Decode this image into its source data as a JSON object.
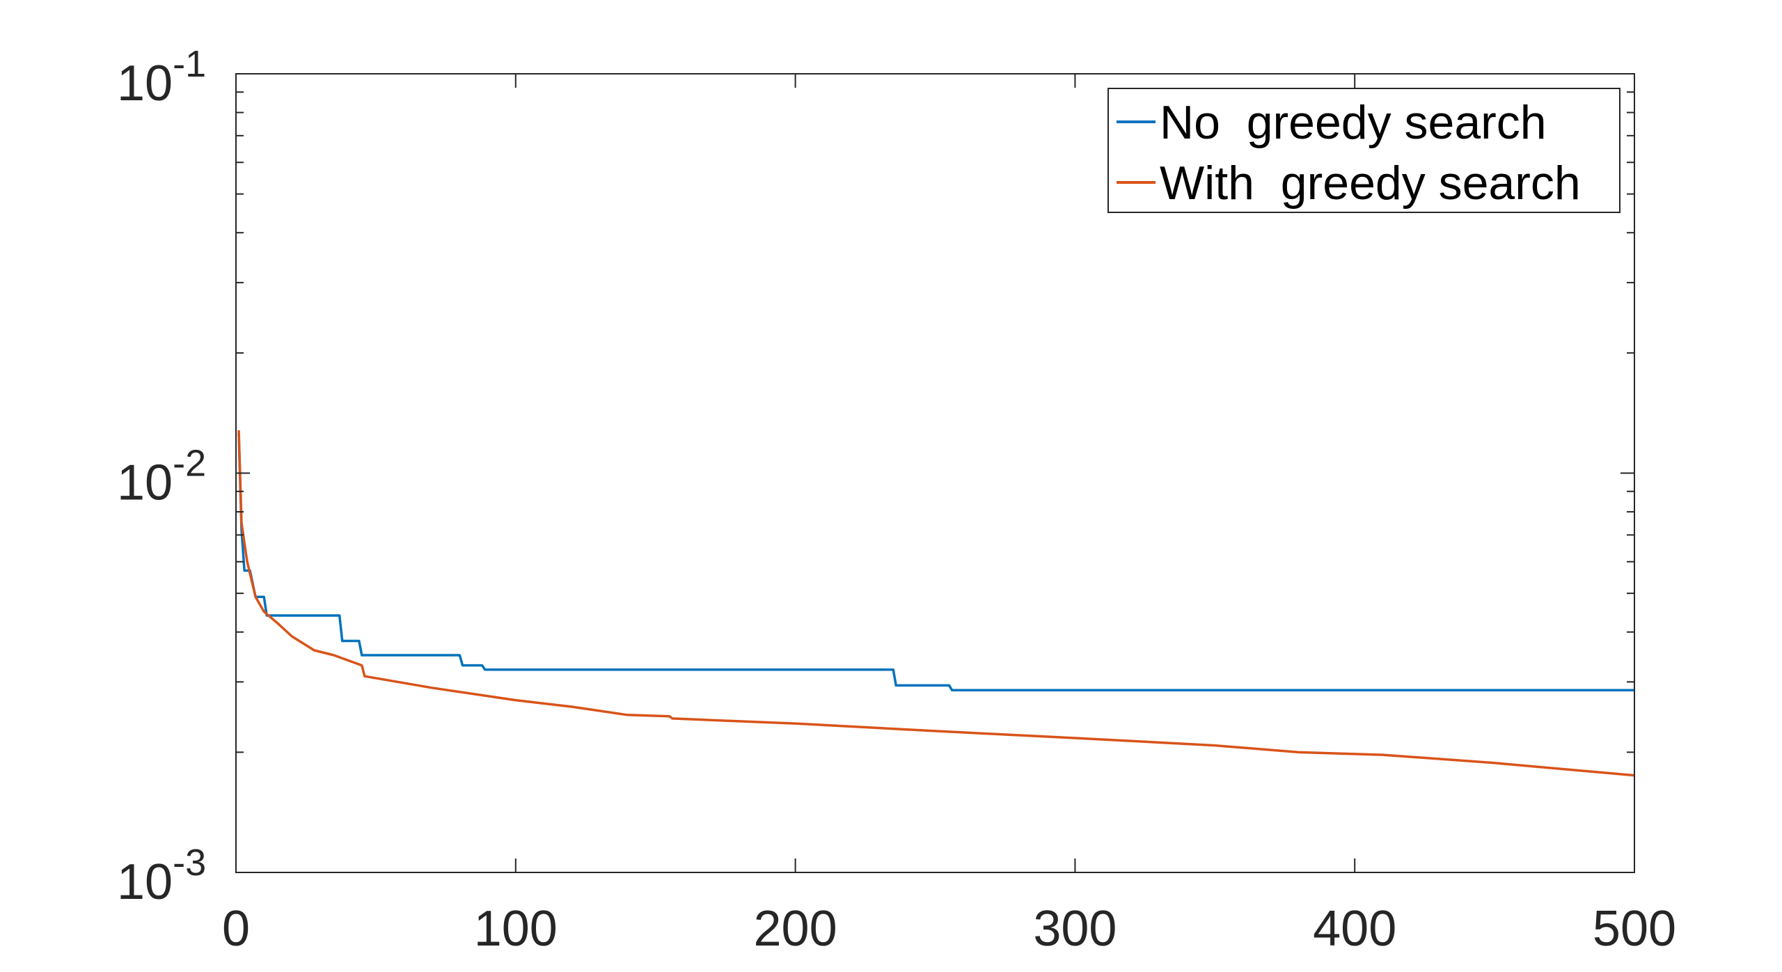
{
  "chart_data": {
    "type": "line",
    "title": "",
    "xlabel": "",
    "ylabel": "",
    "xlim": [
      0,
      500
    ],
    "ylim": [
      0.001,
      0.1
    ],
    "yscale": "log",
    "grid": false,
    "legend_position": "top-right",
    "x_ticks": [
      0,
      100,
      200,
      300,
      400,
      500
    ],
    "x_tick_labels": [
      "0",
      "100",
      "200",
      "300",
      "400",
      "500"
    ],
    "y_ticks": [
      0.001,
      0.01,
      0.1
    ],
    "y_tick_labels": [
      {
        "base": "10",
        "exp": "-3"
      },
      {
        "base": "10",
        "exp": "-2"
      },
      {
        "base": "10",
        "exp": "-1"
      }
    ],
    "series": [
      {
        "name": "No  greedy search",
        "color": "#0072BD",
        "step": true,
        "points": [
          [
            1,
            0.0126
          ],
          [
            2,
            0.0072
          ],
          [
            3,
            0.0057
          ],
          [
            5,
            0.0057
          ],
          [
            7,
            0.0049
          ],
          [
            10,
            0.0049
          ],
          [
            11,
            0.0044
          ],
          [
            37,
            0.0044
          ],
          [
            38,
            0.0038
          ],
          [
            44,
            0.0038
          ],
          [
            45,
            0.0035
          ],
          [
            80,
            0.0035
          ],
          [
            81,
            0.0033
          ],
          [
            88,
            0.0033
          ],
          [
            89,
            0.00322
          ],
          [
            235,
            0.00322
          ],
          [
            236,
            0.00294
          ],
          [
            255,
            0.00294
          ],
          [
            256,
            0.00286
          ],
          [
            500,
            0.00286
          ]
        ]
      },
      {
        "name": "With  greedy search",
        "color": "#D95319",
        "step": false,
        "points": [
          [
            1,
            0.0128
          ],
          [
            2,
            0.0075
          ],
          [
            4,
            0.006
          ],
          [
            7,
            0.0049
          ],
          [
            10,
            0.0045
          ],
          [
            15,
            0.0042
          ],
          [
            20,
            0.0039
          ],
          [
            28,
            0.0036
          ],
          [
            35,
            0.0035
          ],
          [
            45,
            0.0033
          ],
          [
            46,
            0.0031
          ],
          [
            70,
            0.0029
          ],
          [
            100,
            0.0027
          ],
          [
            120,
            0.0026
          ],
          [
            140,
            0.00248
          ],
          [
            155,
            0.00246
          ],
          [
            156,
            0.00243
          ],
          [
            200,
            0.00236
          ],
          [
            250,
            0.00226
          ],
          [
            300,
            0.00217
          ],
          [
            350,
            0.00208
          ],
          [
            380,
            0.002
          ],
          [
            410,
            0.00197
          ],
          [
            450,
            0.00188
          ],
          [
            500,
            0.00175
          ]
        ]
      }
    ]
  }
}
